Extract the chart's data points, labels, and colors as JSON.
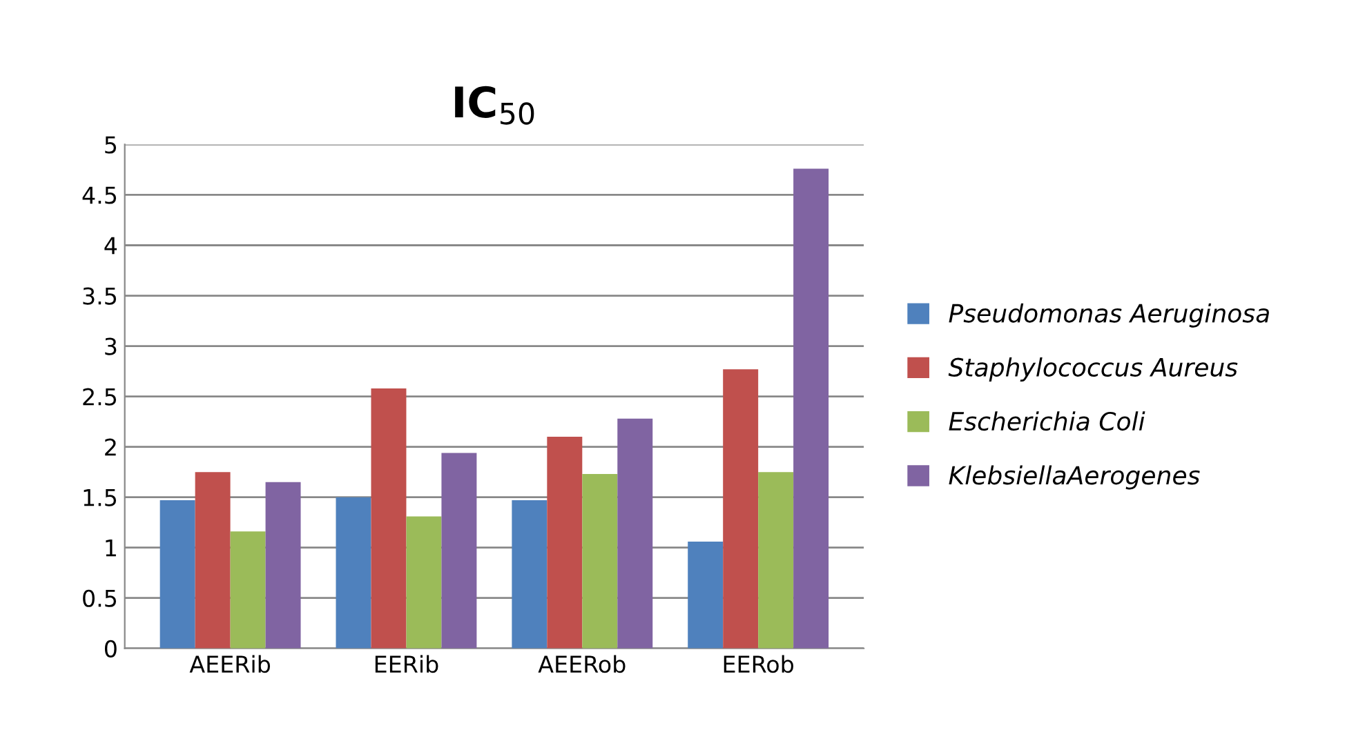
{
  "chart_data": {
    "type": "bar",
    "title": "IC$_{50}$",
    "categories": [
      "AEERib",
      "EERib",
      "AEERob",
      "EERob"
    ],
    "series": [
      {
        "name": "Pseudomonas Aeruginosa",
        "color": "#4f81bd",
        "values": [
          1.47,
          1.5,
          1.47,
          1.06
        ]
      },
      {
        "name": "Staphylococcus Aureus",
        "color": "#c0504d",
        "values": [
          1.75,
          2.58,
          2.1,
          2.77
        ]
      },
      {
        "name": "Escherichia Coli",
        "color": "#9bbb59",
        "values": [
          1.16,
          1.31,
          1.73,
          1.75
        ]
      },
      {
        "name": "KlebsiellaAerogenes",
        "color": "#8064a2",
        "values": [
          1.65,
          1.94,
          2.28,
          4.76
        ]
      }
    ],
    "ylim": [
      0,
      5
    ],
    "yticks": [
      0,
      0.5,
      1,
      1.5,
      2,
      2.5,
      3,
      3.5,
      4,
      4.5,
      5
    ],
    "grid": "y",
    "legend": "right"
  }
}
